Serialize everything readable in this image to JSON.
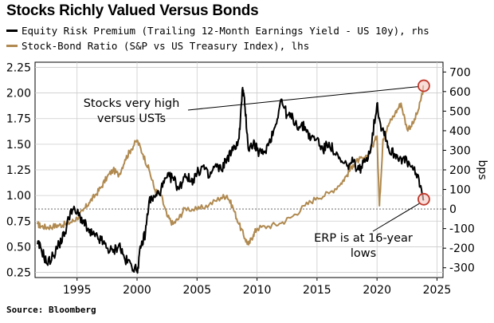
{
  "title": "Stocks Richly Valued Versus Bonds",
  "source": "Source: Bloomberg",
  "colors": {
    "erp": "#000000",
    "ratio": "#b08a50",
    "circle": "#c0392b",
    "grid": "#cccccc"
  },
  "chart_data": {
    "type": "line",
    "title": "Stocks Richly Valued Versus Bonds",
    "grid": true,
    "x_range": [
      1991.5,
      2025.5
    ],
    "x_ticks": [
      1995,
      2000,
      2005,
      2010,
      2015,
      2020,
      2025
    ],
    "left_axis": {
      "range": [
        0.2,
        2.3
      ],
      "ticks": [
        "0.25",
        "0.50",
        "0.75",
        "1.00",
        "1.25",
        "1.50",
        "1.75",
        "2.00",
        "2.25"
      ],
      "tick_values": [
        0.25,
        0.5,
        0.75,
        1.0,
        1.25,
        1.5,
        1.75,
        2.0,
        2.25
      ]
    },
    "right_axis": {
      "label": "bps",
      "range": [
        -350,
        750
      ],
      "ticks": [
        "-300",
        "-200",
        "-100",
        "0",
        "100",
        "200",
        "300",
        "400",
        "500",
        "600",
        "700"
      ],
      "tick_values": [
        -300,
        -200,
        -100,
        0,
        100,
        200,
        300,
        400,
        500,
        600,
        700
      ]
    },
    "zero_line_bps": 0,
    "series": [
      {
        "name": "Equity Risk Premium (Trailing 12-Month Earnings Yield - US 10y), rhs",
        "axis": "right",
        "x": [
          1991.7,
          1992.0,
          1992.5,
          1993.0,
          1993.5,
          1994.0,
          1994.5,
          1995.0,
          1995.5,
          1996.0,
          1996.5,
          1997.0,
          1997.5,
          1998.0,
          1998.5,
          1999.0,
          1999.5,
          2000.0,
          2000.3,
          2000.7,
          2001.0,
          2001.5,
          2002.0,
          2002.5,
          2003.0,
          2003.5,
          2004.0,
          2004.5,
          2005.0,
          2005.5,
          2006.0,
          2006.5,
          2007.0,
          2007.5,
          2008.0,
          2008.5,
          2008.8,
          2009.0,
          2009.3,
          2009.7,
          2010.0,
          2010.5,
          2011.0,
          2011.5,
          2012.0,
          2012.5,
          2013.0,
          2013.5,
          2014.0,
          2014.5,
          2015.0,
          2015.5,
          2016.0,
          2016.5,
          2017.0,
          2017.5,
          2018.0,
          2018.5,
          2019.0,
          2019.5,
          2020.0,
          2020.3,
          2020.7,
          2021.0,
          2021.5,
          2022.0,
          2022.5,
          2023.0,
          2023.5,
          2023.9
        ],
        "values": [
          -180,
          -200,
          -280,
          -240,
          -180,
          -120,
          0,
          -20,
          -60,
          -120,
          -140,
          -160,
          -200,
          -220,
          -180,
          -260,
          -280,
          -320,
          -200,
          -120,
          40,
          60,
          100,
          160,
          160,
          100,
          180,
          140,
          180,
          220,
          160,
          220,
          200,
          260,
          300,
          360,
          620,
          520,
          300,
          340,
          300,
          280,
          340,
          420,
          560,
          480,
          460,
          420,
          420,
          360,
          360,
          300,
          340,
          280,
          240,
          220,
          240,
          200,
          240,
          320,
          540,
          430,
          380,
          300,
          280,
          260,
          240,
          200,
          150,
          50
        ]
      },
      {
        "name": "Stock-Bond Ratio (S&P vs US Treasury Index), lhs",
        "axis": "left",
        "x": [
          1991.7,
          1992.0,
          1992.5,
          1993.0,
          1993.5,
          1994.0,
          1994.5,
          1995.0,
          1995.5,
          1996.0,
          1996.5,
          1997.0,
          1997.5,
          1998.0,
          1998.5,
          1999.0,
          1999.5,
          2000.0,
          2000.5,
          2001.0,
          2001.5,
          2002.0,
          2002.5,
          2003.0,
          2003.5,
          2004.0,
          2005.0,
          2006.0,
          2007.0,
          2007.5,
          2008.0,
          2008.5,
          2009.0,
          2009.3,
          2009.7,
          2010.0,
          2011.0,
          2012.0,
          2013.0,
          2014.0,
          2015.0,
          2016.0,
          2017.0,
          2017.5,
          2018.0,
          2018.5,
          2019.0,
          2019.5,
          2020.0,
          2020.2,
          2020.5,
          2021.0,
          2021.5,
          2022.0,
          2022.5,
          2023.0,
          2023.5,
          2023.9
        ],
        "values": [
          0.72,
          0.7,
          0.69,
          0.7,
          0.71,
          0.72,
          0.74,
          0.78,
          0.85,
          0.93,
          1.0,
          1.08,
          1.18,
          1.25,
          1.2,
          1.35,
          1.45,
          1.54,
          1.4,
          1.25,
          1.05,
          1.0,
          0.8,
          0.72,
          0.78,
          0.88,
          0.86,
          0.91,
          0.98,
          1.0,
          0.88,
          0.72,
          0.58,
          0.52,
          0.62,
          0.68,
          0.7,
          0.73,
          0.8,
          0.9,
          0.98,
          1.02,
          1.12,
          1.2,
          1.3,
          1.35,
          1.35,
          1.45,
          1.58,
          0.9,
          1.55,
          1.7,
          1.8,
          1.9,
          1.65,
          1.7,
          1.85,
          2.07
        ]
      }
    ],
    "annotations": [
      {
        "text_lines": [
          "Stocks very high",
          "versus USTs"
        ],
        "target": {
          "x": 2023.9,
          "y": 2.07,
          "axis": "left"
        }
      },
      {
        "text_lines": [
          "ERP is at 16-year",
          "lows"
        ],
        "target": {
          "x": 2023.9,
          "y": 50,
          "axis": "right"
        }
      }
    ]
  }
}
